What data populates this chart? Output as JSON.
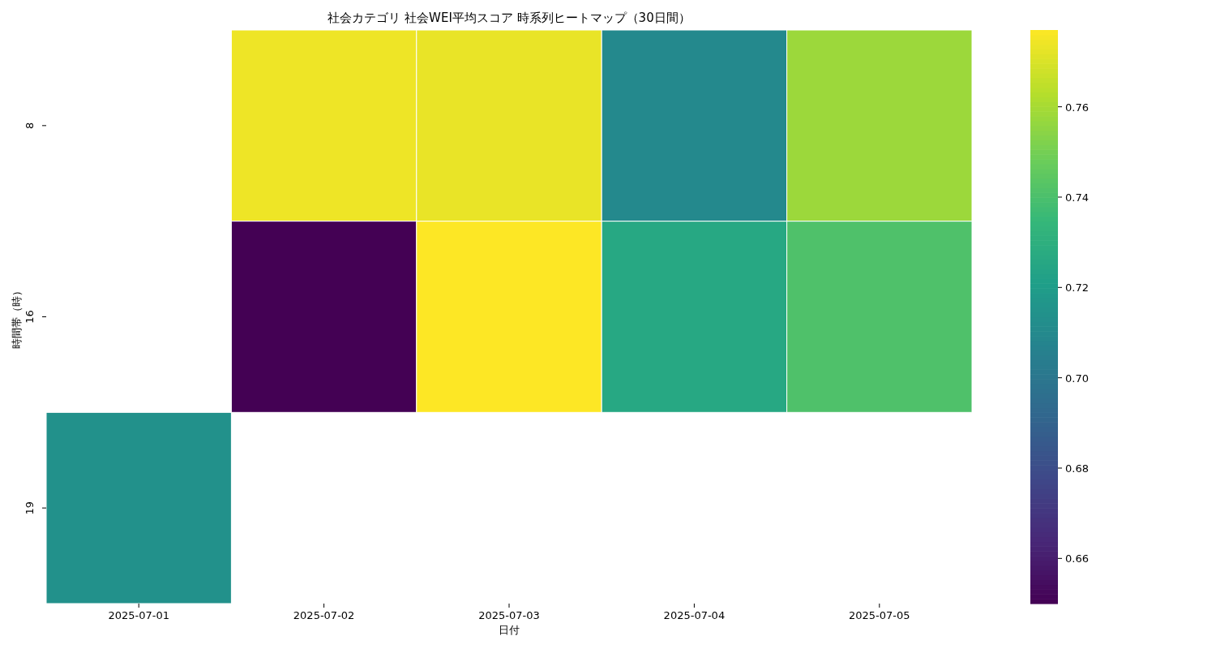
{
  "chart_data": {
    "type": "heatmap",
    "title": "社会カテゴリ 社会WEI平均スコア 時系列ヒートマップ（30日間）",
    "xlabel": "日付",
    "ylabel": "時間帯（時）",
    "categories": [
      "2025-07-01",
      "2025-07-02",
      "2025-07-03",
      "2025-07-04",
      "2025-07-05"
    ],
    "y_categories": [
      "8",
      "16",
      "19"
    ],
    "cells": [
      [
        null,
        0.774,
        0.773,
        0.71,
        0.758
      ],
      [
        null,
        0.65,
        0.777,
        0.726,
        0.741
      ],
      [
        0.714,
        null,
        null,
        null,
        null
      ]
    ],
    "clim": [
      0.65,
      0.777
    ],
    "cticks": [
      0.66,
      0.68,
      {
        "value": 0.7,
        "label": "0.70"
      },
      0.72,
      0.74,
      0.76
    ]
  }
}
